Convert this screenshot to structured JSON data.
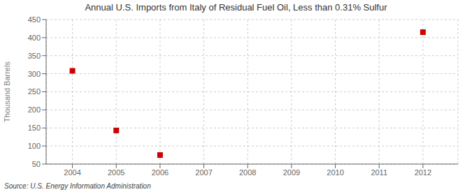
{
  "chart_data": {
    "type": "scatter",
    "title": "Annual U.S. Imports from Italy of Residual Fuel Oil, Less than 0.31% Sulfur",
    "ylabel": "Thousand Barrels",
    "annotation": "Source: U.S. Energy Information Administration",
    "x": [
      2004,
      2005,
      2006,
      2012
    ],
    "values": [
      308,
      143,
      75,
      415
    ],
    "color": "#cc0000",
    "marker": "square",
    "xlim": [
      2003.4,
      2012.8
    ],
    "xticks": [
      2004,
      2005,
      2006,
      2007,
      2008,
      2009,
      2010,
      2011,
      2012
    ],
    "ylim": [
      50,
      450
    ],
    "yticks": [
      50,
      100,
      150,
      200,
      250,
      300,
      350,
      400,
      450
    ],
    "grid": true
  }
}
